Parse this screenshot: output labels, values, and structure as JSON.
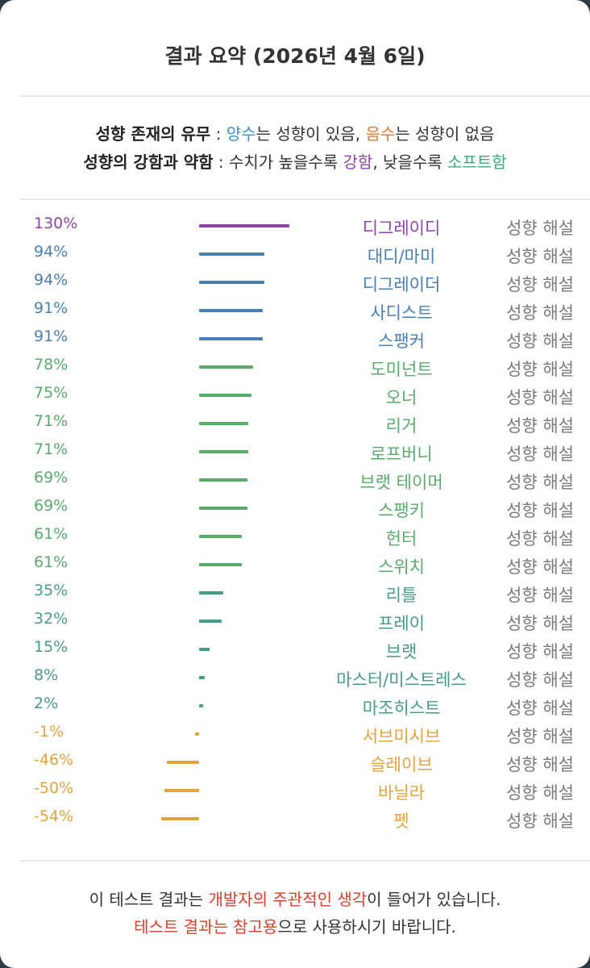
{
  "title": "결과 요약 (2026년 4월 6일)",
  "legend": {
    "line1": {
      "label": "성향 존재의 유무",
      "sep": " : ",
      "positive": "양수",
      "text1": "는 성향이 있음, ",
      "negative": "음수",
      "text2": "는 성향이 없음"
    },
    "line2": {
      "label": "성향의 강함과 약함",
      "sep": " : ",
      "text1": "수치가 높을수록 ",
      "strong": "강함",
      "text2": ", 낮을수록 ",
      "soft": "소프트함"
    }
  },
  "colors": {
    "purple": "#8e44ad",
    "blue": "#4a7fb3",
    "green": "#5aaa6b",
    "teal": "#4a9a88",
    "orange": "#e3a440",
    "positive": "#3f8fd4",
    "negative": "#e07a35",
    "strong": "#8e44ad",
    "soft": "#3aaa7a",
    "red": "#d9402b"
  },
  "rows": [
    {
      "pct": "130%",
      "value": 130,
      "name": "디그레이디",
      "color": "#8e44ad"
    },
    {
      "pct": "94%",
      "value": 94,
      "name": "대디/마미",
      "color": "#4a7fb3"
    },
    {
      "pct": "94%",
      "value": 94,
      "name": "디그레이더",
      "color": "#4a7fb3"
    },
    {
      "pct": "91%",
      "value": 91,
      "name": "사디스트",
      "color": "#4a7fb3"
    },
    {
      "pct": "91%",
      "value": 91,
      "name": "스팽커",
      "color": "#4a7fb3"
    },
    {
      "pct": "78%",
      "value": 78,
      "name": "도미넌트",
      "color": "#5aaa6b"
    },
    {
      "pct": "75%",
      "value": 75,
      "name": "오너",
      "color": "#5aaa6b"
    },
    {
      "pct": "71%",
      "value": 71,
      "name": "리거",
      "color": "#5aaa6b"
    },
    {
      "pct": "71%",
      "value": 71,
      "name": "로프버니",
      "color": "#5aaa6b"
    },
    {
      "pct": "69%",
      "value": 69,
      "name": "브랫 테이머",
      "color": "#5aaa6b"
    },
    {
      "pct": "69%",
      "value": 69,
      "name": "스팽키",
      "color": "#5aaa6b"
    },
    {
      "pct": "61%",
      "value": 61,
      "name": "헌터",
      "color": "#5aaa6b"
    },
    {
      "pct": "61%",
      "value": 61,
      "name": "스위치",
      "color": "#5aaa6b"
    },
    {
      "pct": "35%",
      "value": 35,
      "name": "리틀",
      "color": "#4a9a88"
    },
    {
      "pct": "32%",
      "value": 32,
      "name": "프레이",
      "color": "#4a9a88"
    },
    {
      "pct": "15%",
      "value": 15,
      "name": "브랫",
      "color": "#4a9a88"
    },
    {
      "pct": "8%",
      "value": 8,
      "name": "마스터/미스트레스",
      "color": "#4a9a88"
    },
    {
      "pct": "2%",
      "value": 2,
      "name": "마조히스트",
      "color": "#4a9a88"
    },
    {
      "pct": "-1%",
      "value": -1,
      "name": "서브미시브",
      "color": "#e3a440"
    },
    {
      "pct": "-46%",
      "value": -46,
      "name": "슬레이브",
      "color": "#e3a440"
    },
    {
      "pct": "-50%",
      "value": -50,
      "name": "바닐라",
      "color": "#e3a440"
    },
    {
      "pct": "-54%",
      "value": -54,
      "name": "펫",
      "color": "#e3a440"
    }
  ],
  "explain_label": "성향 해설",
  "footer": {
    "line1": {
      "a": "이 테스트 결과는 ",
      "red": "개발자의 주관적인 생각",
      "b": "이 들어가 있습니다."
    },
    "line2": {
      "red": "테스트 결과는 참고용",
      "b": "으로 사용하시기 바랍니다."
    }
  }
}
